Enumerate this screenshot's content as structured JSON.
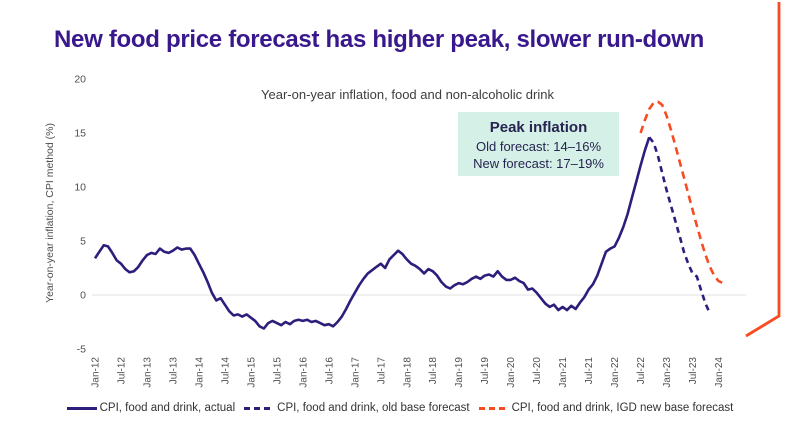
{
  "slide": {
    "title": "New food price forecast has higher peak, slower run-down",
    "colors": {
      "title_purple": "#38188c",
      "series_navy": "#2d1e7c",
      "series_orange": "#f94b22",
      "mint_box_bg": "#d5f0e6",
      "box_text": "#262451",
      "axis_text": "#4f4f4f",
      "gridline": "#e7e7e7"
    }
  },
  "chart_data": {
    "type": "line",
    "title": "Year-on-year inflation, food and non-alcoholic drink",
    "ylabel": "Year-on-year inflation, CPI method (%)",
    "ylim": [
      -5,
      20
    ],
    "y_ticks": [
      20,
      15,
      10,
      5,
      0,
      -5
    ],
    "grid": "horizontal zero line only",
    "x_frequency": "monthly, start Jan-12",
    "x_tick_labels": [
      "Jan-12",
      "Jul-12",
      "Jan-13",
      "Jul-13",
      "Jan-14",
      "Jul-14",
      "Jan-15",
      "Jul-15",
      "Jan-16",
      "Jul-16",
      "Jan-17",
      "Jul-17",
      "Jan-18",
      "Jul-18",
      "Jan-19",
      "Jul-19",
      "Jan-20",
      "Jul-20",
      "Jan-21",
      "Jul-21",
      "Jan-22",
      "Jul-22",
      "Jan-23",
      "Jul-23",
      "Jan-24"
    ],
    "series": [
      {
        "id": "actual",
        "name": "CPI, food and drink, actual",
        "color": "#2d1e7c",
        "dash": "",
        "start_month": 0,
        "values": [
          3.4,
          4.0,
          4.6,
          4.5,
          3.9,
          3.2,
          2.9,
          2.4,
          2.1,
          2.2,
          2.6,
          3.2,
          3.7,
          3.9,
          3.8,
          4.3,
          4.0,
          3.9,
          4.1,
          4.4,
          4.2,
          4.3,
          4.3,
          3.7,
          2.9,
          2.1,
          1.2,
          0.2,
          -0.5,
          -0.3,
          -0.9,
          -1.5,
          -1.9,
          -1.8,
          -2.0,
          -1.8,
          -2.1,
          -2.4,
          -2.9,
          -3.1,
          -2.6,
          -2.4,
          -2.6,
          -2.8,
          -2.5,
          -2.7,
          -2.4,
          -2.3,
          -2.4,
          -2.3,
          -2.5,
          -2.4,
          -2.6,
          -2.8,
          -2.7,
          -2.9,
          -2.5,
          -2.0,
          -1.3,
          -0.5,
          0.2,
          0.9,
          1.5,
          2.0,
          2.3,
          2.6,
          2.9,
          2.5,
          3.3,
          3.7,
          4.1,
          3.8,
          3.3,
          2.9,
          2.7,
          2.4,
          2.0,
          2.4,
          2.2,
          1.8,
          1.2,
          0.8,
          0.6,
          0.9,
          1.1,
          1.0,
          1.2,
          1.5,
          1.7,
          1.5,
          1.8,
          1.9,
          1.7,
          2.2,
          1.7,
          1.4,
          1.4,
          1.6,
          1.3,
          1.1,
          0.5,
          0.6,
          0.2,
          -0.3,
          -0.8,
          -1.1,
          -0.9,
          -1.4,
          -1.1,
          -1.4,
          -1.0,
          -1.3,
          -0.7,
          -0.2,
          0.5,
          1.0,
          1.8,
          2.9,
          4.0,
          4.3,
          4.5,
          5.3,
          6.3,
          7.5,
          9.0,
          10.5,
          12.0,
          13.4,
          14.6
        ]
      },
      {
        "id": "old-forecast",
        "name": "CPI, food and drink, old base forecast",
        "color": "#2d1e7c",
        "dash": "6 4.5",
        "start_month": 128,
        "values": [
          14.6,
          14.1,
          12.9,
          11.3,
          9.7,
          8.3,
          6.9,
          5.5,
          4.0,
          2.9,
          2.0,
          1.7,
          0.4,
          -0.8,
          -1.7
        ]
      },
      {
        "id": "new-forecast",
        "name": "CPI, food and drink, IGD new base forecast",
        "color": "#f94b22",
        "dash": "7.5 5",
        "start_month": 126,
        "values": [
          15.0,
          16.2,
          17.2,
          17.8,
          17.9,
          17.6,
          16.6,
          15.3,
          13.9,
          12.4,
          10.9,
          9.4,
          7.9,
          6.4,
          5.0,
          3.7,
          2.6,
          1.8,
          1.3,
          1.1
        ]
      }
    ],
    "annotation_box": {
      "title": "Peak inflation",
      "line1": "Old forecast: 14–16%",
      "line2": "New forecast: 17–19%"
    },
    "legend": {
      "position": "bottom center",
      "items": [
        {
          "label": "CPI, food and drink, actual",
          "swatch": "solid",
          "color": "#2d1e7c"
        },
        {
          "label": "CPI, food and drink, old base forecast",
          "swatch": "dashed",
          "color": "#2d1e7c"
        },
        {
          "label": "CPI, food and drink, IGD new base forecast",
          "swatch": "dashed",
          "color": "#f94b22"
        }
      ]
    }
  }
}
